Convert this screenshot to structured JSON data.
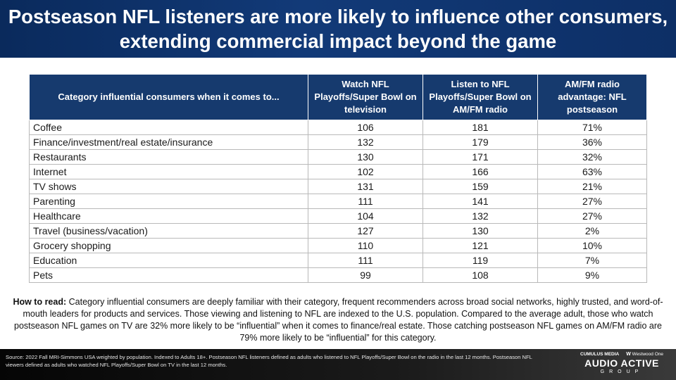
{
  "title": "Postseason NFL listeners are more likely to influence other consumers, extending commercial impact beyond the game",
  "table": {
    "headers": [
      "Category influential consumers when it comes to...",
      "Watch NFL Playoffs/Super Bowl on television",
      "Listen to NFL Playoffs/Super Bowl on AM/FM radio",
      "AM/FM radio advantage: NFL postseason"
    ],
    "rows": [
      {
        "category": "Coffee",
        "tv": "106",
        "radio": "181",
        "advantage": "71%"
      },
      {
        "category": "Finance/investment/real estate/insurance",
        "tv": "132",
        "radio": "179",
        "advantage": "36%"
      },
      {
        "category": "Restaurants",
        "tv": "130",
        "radio": "171",
        "advantage": "32%"
      },
      {
        "category": "Internet",
        "tv": "102",
        "radio": "166",
        "advantage": "63%"
      },
      {
        "category": "TV shows",
        "tv": "131",
        "radio": "159",
        "advantage": "21%"
      },
      {
        "category": "Parenting",
        "tv": "111",
        "radio": "141",
        "advantage": "27%"
      },
      {
        "category": "Healthcare",
        "tv": "104",
        "radio": "132",
        "advantage": "27%"
      },
      {
        "category": "Travel (business/vacation)",
        "tv": "127",
        "radio": "130",
        "advantage": "2%"
      },
      {
        "category": "Grocery shopping",
        "tv": "110",
        "radio": "121",
        "advantage": "10%"
      },
      {
        "category": "Education",
        "tv": "111",
        "radio": "119",
        "advantage": "7%"
      },
      {
        "category": "Pets",
        "tv": "99",
        "radio": "108",
        "advantage": "9%"
      }
    ]
  },
  "how_to_read": {
    "label": "How to read:",
    "text": "Category influential consumers are deeply familiar with their category, frequent recommenders across broad social networks, highly trusted, and word-of-mouth leaders for products and services. Those viewing and listening to NFL are indexed to the U.S. population. Compared to the average adult, those who watch postseason NFL games on TV are 32% more likely to be “influential” when it comes to finance/real estate. Those catching postseason NFL games on AM/FM radio are 79% more likely to be “influential” for this category."
  },
  "footer": {
    "source": "Source: 2022 Fall MRI-Simmons USA weighted by population. Indexed to Adults 18+. Postseason NFL listeners defined as adults who listened to NFL Playoffs/Super Bowl on the radio in the last 12 months. Postseason NFL viewers defined as adults who watched NFL Playoffs/Super Bowl on TV in the last 12 months.",
    "logo_cumulus": "CUMULUS MEDIA",
    "logo_westwood": "Westwood One",
    "logo_main": "AUDIO ACTIVE",
    "logo_sub": "GROUP"
  }
}
